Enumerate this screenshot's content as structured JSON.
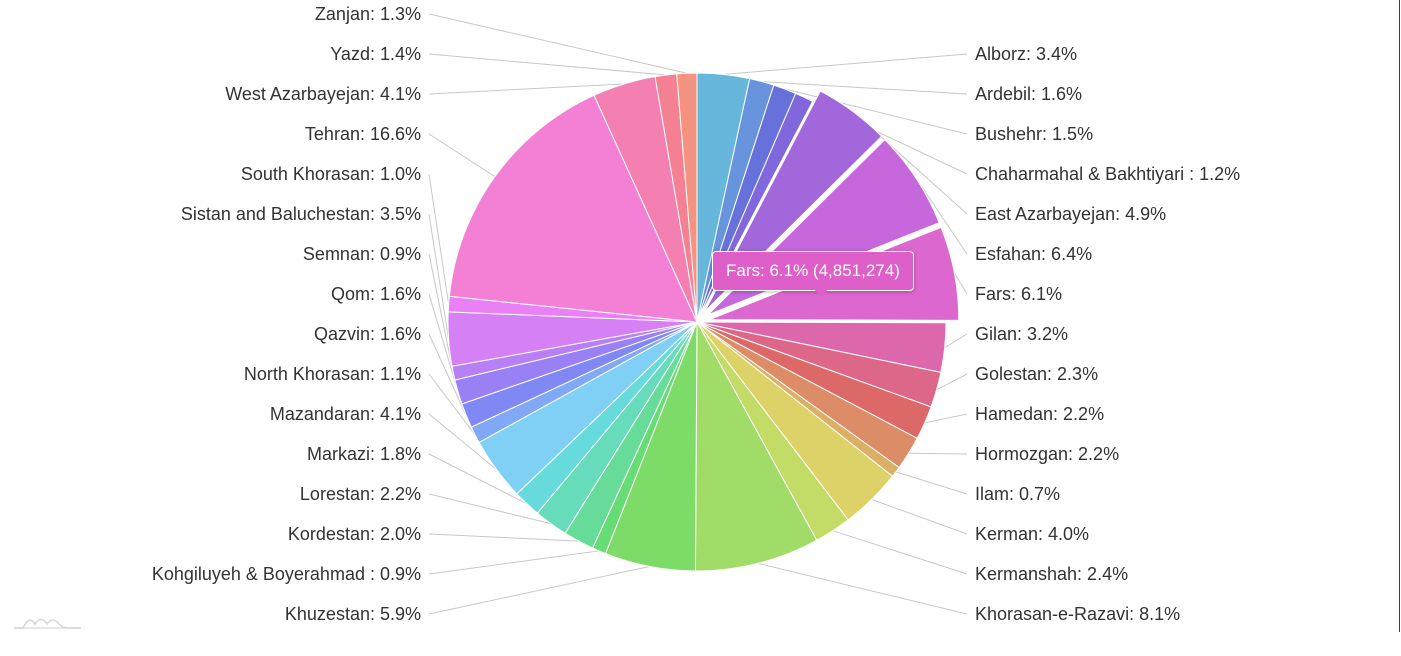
{
  "chart_data": {
    "type": "pie",
    "title": "",
    "highlighted": "Fars",
    "tooltip": "Fars: 6.1% (4,851,274)",
    "slices": [
      {
        "name": "Alborz",
        "label": "Alborz: 3.4%",
        "value": 3.4,
        "color": "#67b7dc"
      },
      {
        "name": "Ardebil",
        "label": "Ardebil: 1.6%",
        "value": 1.6,
        "color": "#6794dc"
      },
      {
        "name": "Bushehr",
        "label": "Bushehr: 1.5%",
        "value": 1.5,
        "color": "#6771dc"
      },
      {
        "name": "Chaharmahal & Bakhtiyari",
        "label": "Chaharmahal & Bakhtiyari : 1.2%",
        "value": 1.2,
        "color": "#8067dc"
      },
      {
        "name": "East Azarbayejan",
        "label": "East Azarbayejan: 4.9%",
        "value": 4.9,
        "color": "#a367dc",
        "pulled": true
      },
      {
        "name": "Esfahan",
        "label": "Esfahan: 6.4%",
        "value": 6.4,
        "color": "#c767dc",
        "pulled": true
      },
      {
        "name": "Fars",
        "label": "Fars: 6.1%",
        "value": 6.1,
        "color": "#dc67ce",
        "pulled": true
      },
      {
        "name": "Gilan",
        "label": "Gilan: 3.2%",
        "value": 3.2,
        "color": "#dc67ab"
      },
      {
        "name": "Golestan",
        "label": "Golestan: 2.3%",
        "value": 2.3,
        "color": "#dc6788"
      },
      {
        "name": "Hamedan",
        "label": "Hamedan: 2.2%",
        "value": 2.2,
        "color": "#dc6967"
      },
      {
        "name": "Hormozgan",
        "label": "Hormozgan: 2.2%",
        "value": 2.2,
        "color": "#dc8c67"
      },
      {
        "name": "Ilam",
        "label": "Ilam: 0.7%",
        "value": 0.7,
        "color": "#dcaf67"
      },
      {
        "name": "Kerman",
        "label": "Kerman: 4.0%",
        "value": 4.0,
        "color": "#dcd267"
      },
      {
        "name": "Kermanshah",
        "label": "Kermanshah: 2.4%",
        "value": 2.4,
        "color": "#c3dc67"
      },
      {
        "name": "Khorasan-e-Razavi",
        "label": "Khorasan-e-Razavi: 8.1%",
        "value": 8.1,
        "color": "#a0dc67"
      },
      {
        "name": "Khuzestan",
        "label": "Khuzestan: 5.9%",
        "value": 5.9,
        "color": "#7ddc67"
      },
      {
        "name": "Kohgiluyeh & Boyerahmad",
        "label": "Kohgiluyeh & Boyerahmad : 0.9%",
        "value": 0.9,
        "color": "#67dc75"
      },
      {
        "name": "Kordestan",
        "label": "Kordestan: 2.0%",
        "value": 2.0,
        "color": "#67dc98"
      },
      {
        "name": "Lorestan",
        "label": "Lorestan: 2.2%",
        "value": 2.2,
        "color": "#67dcbb"
      },
      {
        "name": "Markazi",
        "label": "Markazi: 1.8%",
        "value": 1.8,
        "color": "#67dadc"
      },
      {
        "name": "Mazandaran",
        "label": "Mazandaran: 4.1%",
        "value": 4.1,
        "color": "#80d0f5"
      },
      {
        "name": "North Khorasan",
        "label": "North Khorasan: 1.1%",
        "value": 1.1,
        "color": "#80a8f5"
      },
      {
        "name": "Qazvin",
        "label": "Qazvin: 1.6%",
        "value": 1.6,
        "color": "#8088f5"
      },
      {
        "name": "Qom",
        "label": "Qom: 1.6%",
        "value": 1.6,
        "color": "#9a80f5"
      },
      {
        "name": "Semnan",
        "label": "Semnan: 0.9%",
        "value": 0.9,
        "color": "#b880f5"
      },
      {
        "name": "Sistan and Baluchestan",
        "label": "Sistan and Baluchestan: 3.5%",
        "value": 3.5,
        "color": "#d580f5"
      },
      {
        "name": "South Khorasan",
        "label": "South Khorasan: 1.0%",
        "value": 1.0,
        "color": "#ea80f5"
      },
      {
        "name": "Tehran",
        "label": "Tehran: 16.6%",
        "value": 16.6,
        "color": "#f480d5"
      },
      {
        "name": "West Azarbayejan",
        "label": "West Azarbayejan: 4.1%",
        "value": 4.1,
        "color": "#f480b2"
      },
      {
        "name": "Yazd",
        "label": "Yazd: 1.4%",
        "value": 1.4,
        "color": "#f48094"
      },
      {
        "name": "Zanjan",
        "label": "Zanjan: 1.3%",
        "value": 1.3,
        "color": "#f49480"
      }
    ]
  },
  "logo_icon": "amcharts-logo-icon"
}
